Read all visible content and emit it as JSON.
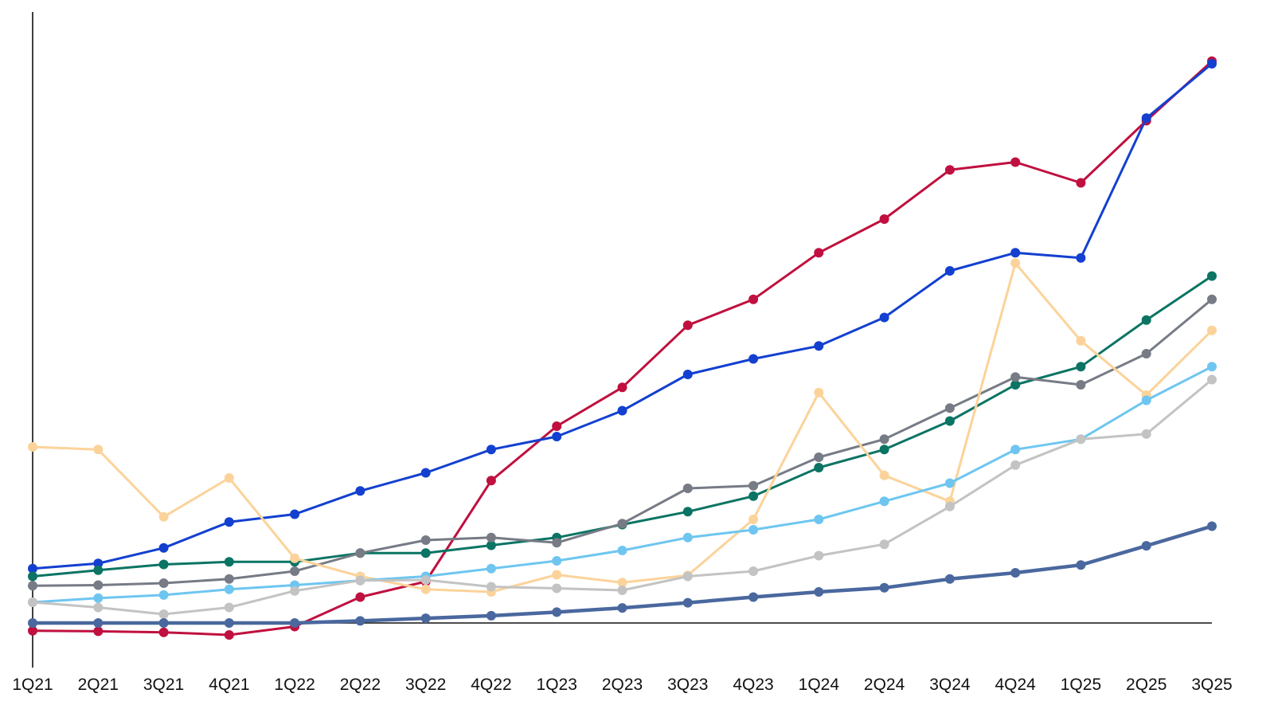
{
  "chart_data": {
    "type": "line",
    "title": "",
    "xlabel": "",
    "ylabel": "",
    "categories": [
      "1Q21",
      "2Q21",
      "3Q21",
      "4Q21",
      "1Q22",
      "2Q22",
      "3Q22",
      "4Q22",
      "1Q23",
      "2Q23",
      "3Q23",
      "4Q23",
      "1Q24",
      "2Q24",
      "3Q24",
      "4Q24",
      "1Q25",
      "2Q25",
      "3Q25"
    ],
    "ylim": [
      -8,
      115
    ],
    "y_ticks_shown": false,
    "grid": false,
    "legend": "none",
    "series": [
      {
        "color": "#c0103f",
        "values": [
          -1.5,
          -1.6,
          -1.8,
          -2.3,
          -0.7,
          5,
          8,
          27.5,
          38,
          45.5,
          57.5,
          62.5,
          71.5,
          78,
          87.5,
          89,
          85,
          97,
          108.5
        ]
      },
      {
        "color": "#1340d0",
        "values": [
          10.5,
          11.5,
          14.5,
          19.5,
          21,
          25.5,
          29,
          33.5,
          36,
          41,
          48,
          51,
          53.5,
          59,
          68,
          71.5,
          70.5,
          97.5,
          108
        ]
      },
      {
        "color": "#0b7464",
        "values": [
          9,
          10.2,
          11.3,
          11.8,
          11.8,
          13.5,
          13.5,
          15,
          16.5,
          19,
          21.5,
          24.5,
          30,
          33.5,
          39,
          46,
          49.5,
          58.5,
          67
        ]
      },
      {
        "color": "#767b85",
        "values": [
          7.2,
          7.3,
          7.7,
          8.5,
          10,
          13.5,
          16,
          16.5,
          15.5,
          19.2,
          26,
          26.5,
          32,
          35.5,
          41.5,
          47.5,
          46,
          52,
          62.5
        ]
      },
      {
        "color": "#fbd39a",
        "values": [
          34,
          33.5,
          20.5,
          28,
          12.5,
          9,
          6.5,
          6,
          9.3,
          7.8,
          9.2,
          20,
          44.5,
          28.5,
          23.5,
          69.5,
          54.5,
          44,
          56.5
        ]
      },
      {
        "color": "#6ec6f0",
        "values": [
          4,
          4.8,
          5.4,
          6.5,
          7.3,
          8.2,
          9,
          10.5,
          12,
          14,
          16.5,
          18,
          20,
          23.5,
          27,
          33.5,
          35.5,
          43,
          49.5
        ]
      },
      {
        "color": "#c3c3c3",
        "values": [
          4,
          3,
          1.7,
          3,
          6.2,
          8.2,
          8.3,
          7,
          6.7,
          6.3,
          9,
          10,
          13,
          15.2,
          22.5,
          30.5,
          35.5,
          36.5,
          47
        ]
      },
      {
        "color": "#4a689e",
        "thick": true,
        "values": [
          0,
          0,
          0,
          0,
          0,
          0.4,
          0.9,
          1.4,
          2.1,
          2.9,
          3.9,
          5,
          6,
          6.8,
          8.5,
          9.7,
          11.2,
          14.9,
          18.7
        ]
      }
    ]
  }
}
